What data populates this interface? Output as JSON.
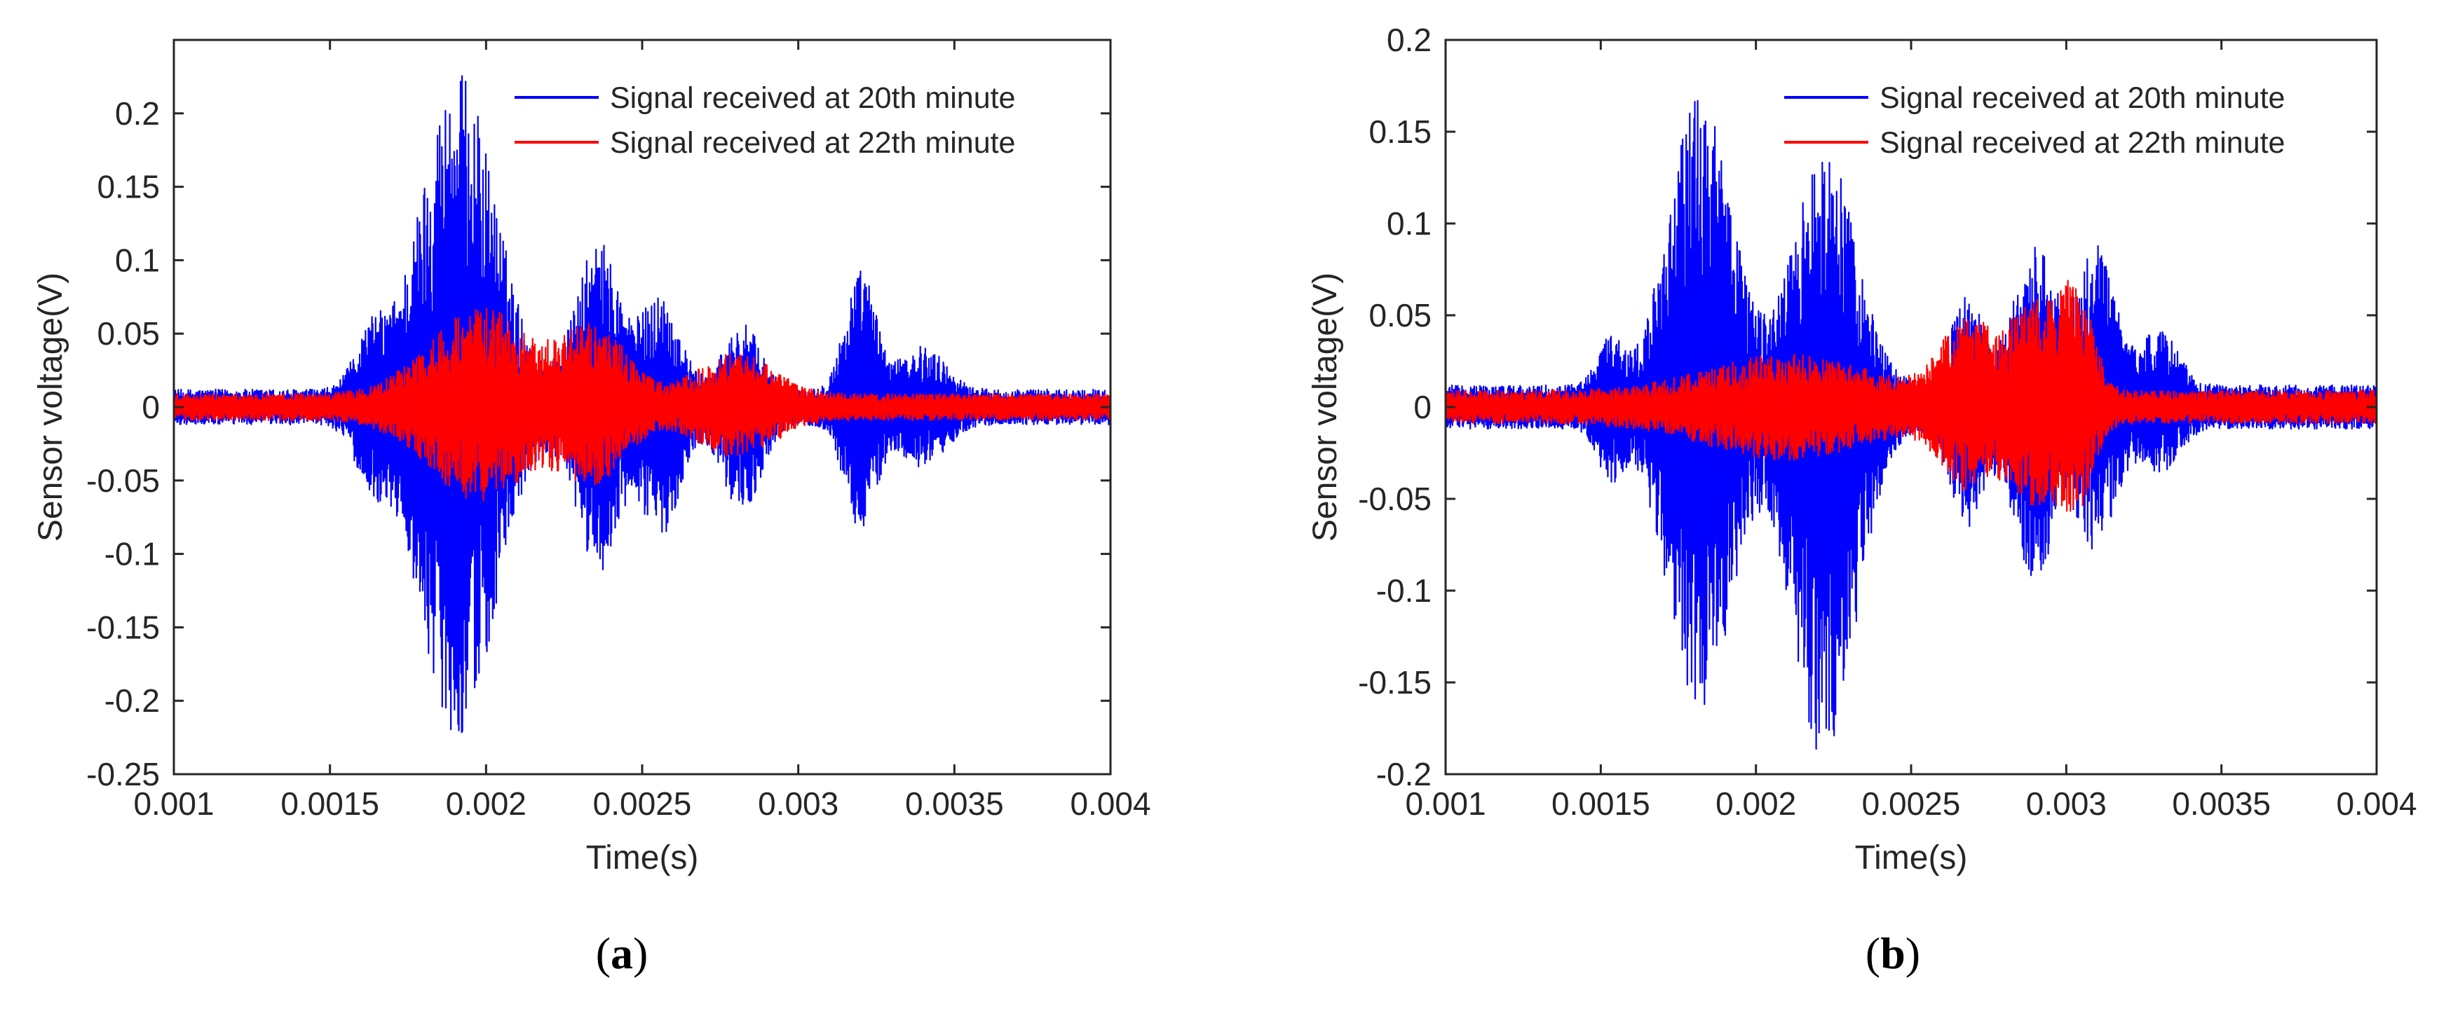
{
  "chart_data": [
    {
      "panel_label": "a",
      "type": "line",
      "xlabel": "Time(s)",
      "ylabel": "Sensor voltage(V)",
      "xlim": [
        0.001,
        0.004
      ],
      "ylim": [
        -0.25,
        0.25
      ],
      "x_ticks": [
        0.001,
        0.0015,
        0.002,
        0.0025,
        0.003,
        0.0035,
        0.004
      ],
      "x_tick_labels": [
        "0.001",
        "0.0015",
        "0.002",
        "0.0025",
        "0.003",
        "0.0035",
        "0.004"
      ],
      "y_ticks": [
        -0.25,
        -0.2,
        -0.15,
        -0.1,
        -0.05,
        0,
        0.05,
        0.1,
        0.15,
        0.2
      ],
      "y_tick_labels": [
        "-0.25",
        "-0.2",
        "-0.15",
        "-0.1",
        "-0.05",
        "0",
        "0.05",
        "0.1",
        "0.15",
        "0.2"
      ],
      "grid": false,
      "legend_position": "top-right",
      "series": [
        {
          "name": "Signal received at 20th minute",
          "color": "#0000ff",
          "noise_floor": 0.012,
          "bursts": [
            {
              "center": 0.00191,
              "width": 0.00012,
              "amp_pos": 0.217,
              "amp_neg": 0.212
            },
            {
              "center": 0.00163,
              "width": 5e-05,
              "amp_pos": 0.035,
              "amp_neg": 0.035
            },
            {
              "center": 0.00236,
              "width": 7e-05,
              "amp_pos": 0.101,
              "amp_neg": 0.1
            },
            {
              "center": 0.00256,
              "width": 6e-05,
              "amp_pos": 0.065,
              "amp_neg": 0.075
            },
            {
              "center": 0.00282,
              "width": 6e-05,
              "amp_pos": 0.045,
              "amp_neg": 0.06
            },
            {
              "center": 0.0032,
              "width": 5e-05,
              "amp_pos": 0.082,
              "amp_neg": 0.072
            },
            {
              "center": 0.0034,
              "width": 7e-05,
              "amp_pos": 0.03,
              "amp_neg": 0.03
            }
          ],
          "peak_max": 0.217,
          "peak_min": -0.212
        },
        {
          "name": "Signal received at 22th minute",
          "color": "#ff0000",
          "noise_floor": 0.009,
          "bursts": [
            {
              "center": 0.00198,
              "width": 0.00016,
              "amp_pos": 0.06,
              "amp_neg": 0.055
            },
            {
              "center": 0.00235,
              "width": 0.0001,
              "amp_pos": 0.045,
              "amp_neg": 0.04
            },
            {
              "center": 0.0028,
              "width": 0.00012,
              "amp_pos": 0.028,
              "amp_neg": 0.025
            }
          ],
          "peak_max": 0.06,
          "peak_min": -0.055
        }
      ]
    },
    {
      "panel_label": "b",
      "type": "line",
      "xlabel": "Time(s)",
      "ylabel": "Sensor voltage(V)",
      "xlim": [
        0.001,
        0.004
      ],
      "ylim": [
        -0.2,
        0.2
      ],
      "x_ticks": [
        0.001,
        0.0015,
        0.002,
        0.0025,
        0.003,
        0.0035,
        0.004
      ],
      "x_tick_labels": [
        "0.001",
        "0.0015",
        "0.002",
        "0.0025",
        "0.003",
        "0.0035",
        "0.004"
      ],
      "y_ticks": [
        -0.2,
        -0.15,
        -0.1,
        -0.05,
        0,
        0.05,
        0.1,
        0.15,
        0.2
      ],
      "y_tick_labels": [
        "-0.2",
        "-0.15",
        "-0.1",
        "-0.05",
        "0",
        "0.05",
        "0.1",
        "0.15",
        "0.2"
      ],
      "grid": false,
      "legend_position": "top-right",
      "series": [
        {
          "name": "Signal received at 20th minute",
          "color": "#0000ff",
          "noise_floor": 0.012,
          "bursts": [
            {
              "center": 0.00182,
              "width": 0.0001,
              "amp_pos": 0.16,
              "amp_neg": 0.155
            },
            {
              "center": 0.00222,
              "width": 0.0001,
              "amp_pos": 0.13,
              "amp_neg": 0.18
            },
            {
              "center": 0.00153,
              "width": 4e-05,
              "amp_pos": 0.025,
              "amp_neg": 0.028
            },
            {
              "center": 0.00268,
              "width": 5e-05,
              "amp_pos": 0.05,
              "amp_neg": 0.055
            },
            {
              "center": 0.0029,
              "width": 7e-05,
              "amp_pos": 0.075,
              "amp_neg": 0.085
            },
            {
              "center": 0.0031,
              "width": 6e-05,
              "amp_pos": 0.075,
              "amp_neg": 0.065
            },
            {
              "center": 0.0033,
              "width": 6e-05,
              "amp_pos": 0.03,
              "amp_neg": 0.025
            }
          ],
          "peak_max": 0.16,
          "peak_min": -0.18
        },
        {
          "name": "Signal received at 22th minute",
          "color": "#ff0000",
          "noise_floor": 0.009,
          "bursts": [
            {
              "center": 0.0021,
              "width": 0.00025,
              "amp_pos": 0.02,
              "amp_neg": 0.02
            },
            {
              "center": 0.00268,
              "width": 8e-05,
              "amp_pos": 0.04,
              "amp_neg": 0.035
            },
            {
              "center": 0.0029,
              "width": 8e-05,
              "amp_pos": 0.05,
              "amp_neg": 0.045
            },
            {
              "center": 0.00304,
              "width": 5e-05,
              "amp_pos": 0.05,
              "amp_neg": 0.04
            }
          ],
          "peak_max": 0.05,
          "peak_min": -0.045
        }
      ]
    }
  ]
}
